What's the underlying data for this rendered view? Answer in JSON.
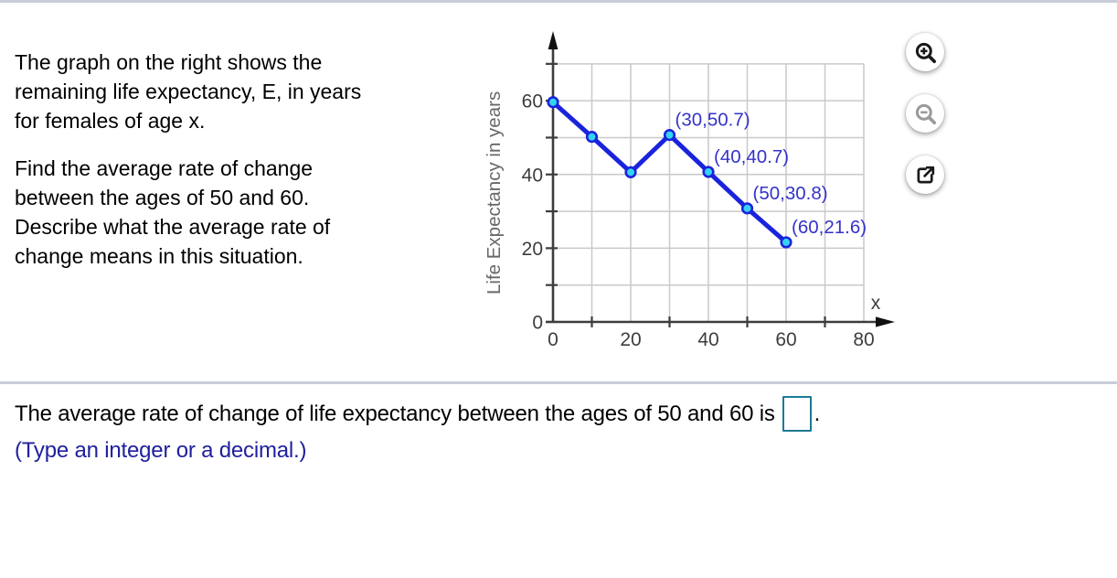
{
  "problem": {
    "paragraph1_lines": [
      "The graph on the right shows the",
      "remaining life expectancy, E, in years",
      "for females of age x."
    ],
    "paragraph2_lines": [
      "Find the average rate of change",
      "between the ages of 50 and 60.",
      "Describe what the average rate of",
      "change means in this situation."
    ]
  },
  "chart_data": {
    "type": "line",
    "title": "",
    "xlabel": "x",
    "ylabel": "Life Expectancy in years",
    "x": [
      0,
      10,
      20,
      30,
      40,
      50,
      60
    ],
    "y": [
      59.6,
      50.2,
      40.6,
      50.7,
      40.7,
      30.8,
      21.6
    ],
    "point_labels": [
      "",
      "",
      "",
      "(30,50.7)",
      "(40,40.7)",
      "(50,30.8)",
      "(60,21.6)"
    ],
    "xlim": [
      0,
      85
    ],
    "ylim": [
      0,
      72
    ],
    "xtick_labels": [
      0,
      20,
      40,
      60,
      80
    ],
    "ytick_labels": [
      0,
      20,
      40,
      60
    ],
    "x_minor_ticks": [
      10,
      30,
      50,
      70
    ],
    "y_tick_marks": [
      0,
      10,
      20,
      30,
      40,
      50,
      60,
      70
    ],
    "grid": true,
    "grid_step": 10,
    "legend_position": "none",
    "line_color": "#1a23dc",
    "marker_fill": "#35d3f2",
    "marker_stroke": "#1a23dc",
    "point_label_color": "#3433cb",
    "grid_color": "#c9c9c9",
    "axis_color": "#3d3d3d",
    "tick_label_color": "#3d3d3d",
    "ylabel_color": "#686868"
  },
  "toolbar": {
    "buttons": [
      {
        "name": "zoom-in",
        "icon": "magnifier-plus-icon",
        "enabled": true
      },
      {
        "name": "zoom-out",
        "icon": "magnifier-minus-icon",
        "enabled": false
      },
      {
        "name": "open-in-new-window",
        "icon": "external-link-icon",
        "enabled": true
      }
    ]
  },
  "answer": {
    "statement": "The average rate of change of life expectancy between the ages of 50 and 60 is",
    "after_input": ".",
    "input_value": "",
    "hint": "(Type an integer or a decimal.)",
    "input_border_color": "#1b7b94",
    "hint_color": "#20209e"
  }
}
